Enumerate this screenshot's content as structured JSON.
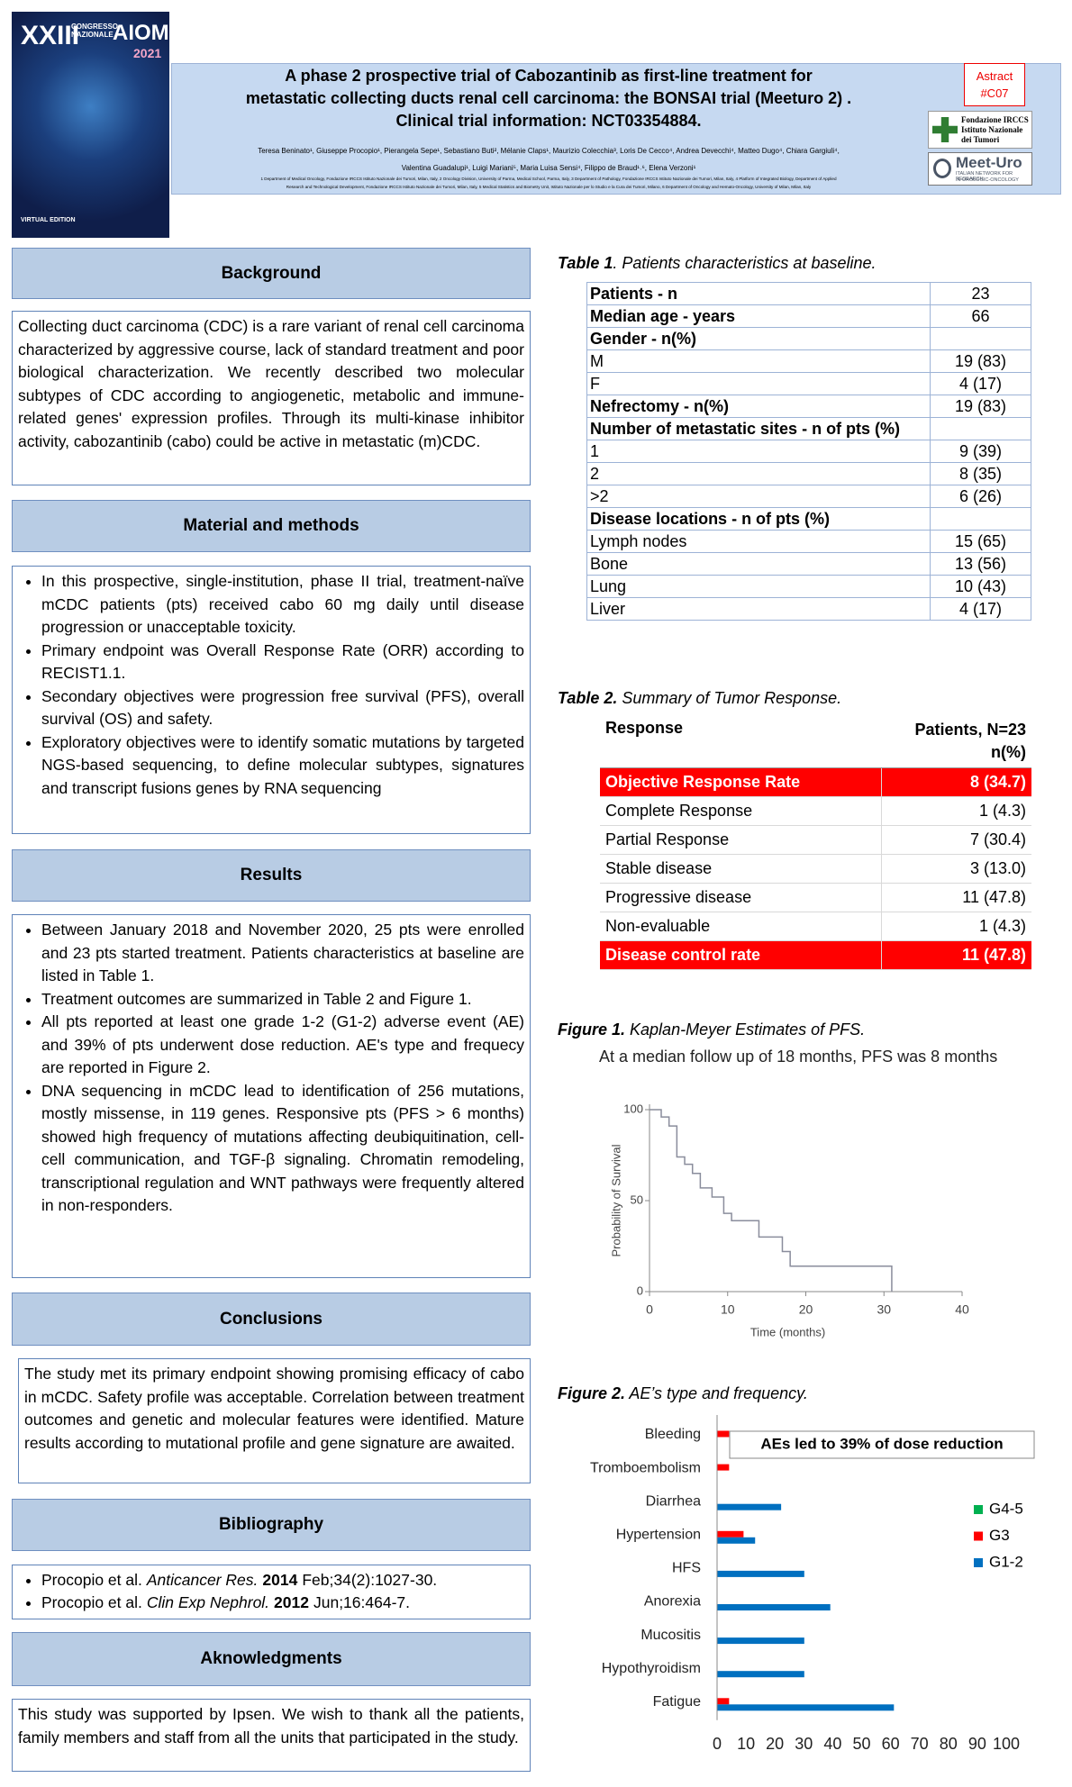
{
  "header": {
    "cover": {
      "edition": "XXIII",
      "congress": "CONGRESSO NAZIONALE",
      "brand": "AIOM",
      "year": "2021",
      "edition_note": "VIRTUAL EDITION"
    },
    "title": [
      "A phase 2 prospective trial of Cabozantinib as first-line treatment for",
      "metastatic collecting ducts renal cell carcinoma: the BONSAI trial (Meeturo 2) .",
      "Clinical trial information: NCT03354884."
    ],
    "authors": [
      "Teresa Beninato¹, Giuseppe Procopio¹, Pierangela Sepe¹, Sebastiano Buti², Mélanie Claps¹, Maurizio Colecchia³, Loris De Cecco⁴, Andrea Devecchi⁴, Matteo Dugo⁴, Chiara Gargiuli⁴,",
      "Valentina Guadalupi¹, Luigi Mariani⁵, Maria Luisa Sensi⁴, Filippo de Braud¹˒⁶, Elena Verzoni¹"
    ],
    "affiliations": [
      "1 Department of Medical Oncology, Fondazione IRCCS Istituto Nazionale dei Tumori, Milan, Italy, 2 Oncology Division, University of Parma, Medical School, Parma, Italy, 3 Department of Pathology, Fondazione IRCCS Istituto Nazionale dei Tumori, Milan, Italy, 4 Platform of Integrated Biology, Department of Applied",
      "Research and Technological Development, Fondazione IRCCS Istituto Nazionale dei Tumori, Milan, Italy, 5 Medical Statistics and Biometry Unit, Istituto Nazionale per lo Studio e la Cura dei Tumori, Milano, 6 Department of Oncology and Hemato-Oncology, University of Milan, Milan, Italy"
    ],
    "abstract": [
      "Astract",
      "#C07"
    ],
    "logos": {
      "int": [
        "Fondazione IRCCS",
        "Istituto Nazionale",
        "dei Tumori"
      ],
      "meeturo": [
        "Meet-Uro",
        "ITALIAN NETWORK FOR RESEARCH",
        "IN UROLOGIC-ONCOLOGY"
      ]
    }
  },
  "sections": [
    {
      "title": "Background",
      "paragraph": "Collecting duct carcinoma (CDC) is a rare variant of renal cell carcinoma characterized by aggressive course, lack of standard treatment and poor biological characterization. We recently described two molecular subtypes of CDC according to angiogenetic, metabolic and immune-related genes' expression profiles. Through its multi-kinase inhibitor activity, cabozantinib (cabo) could be active in metastatic (m)CDC."
    },
    {
      "title": "Material and methods",
      "bullets": [
        "In this prospective, single-institution, phase II trial, treatment-naïve mCDC patients (pts) received cabo 60 mg daily until disease progression or unacceptable toxicity.",
        "Primary endpoint was Overall Response Rate (ORR) according to RECIST1.1.",
        "Secondary objectives were progression free survival (PFS), overall survival (OS) and safety.",
        "Exploratory objectives were to identify somatic mutations by targeted NGS-based sequencing, to define molecular subtypes, signatures and transcript fusions genes by RNA sequencing"
      ]
    },
    {
      "title": "Results",
      "bullets": [
        "Between January 2018 and November 2020, 25 pts were enrolled and 23 pts started treatment. Patients characteristics at baseline are listed in Table 1.",
        "Treatment outcomes are summarized in Table 2 and Figure 1.",
        "All pts reported at least one grade 1-2 (G1-2) adverse event (AE) and 39% of pts underwent dose reduction. AE's type and frequecy are reported in Figure 2.",
        "DNA sequencing in mCDC lead to identification of 256 mutations, mostly missense, in 119 genes. Responsive pts (PFS > 6 months) showed high frequency of mutations affecting deubiquitination, cell-cell communication, and TGF-β signaling. Chromatin remodeling, transcriptional regulation and WNT pathways were frequently altered in non-responders."
      ]
    },
    {
      "title": "Conclusions",
      "paragraph": "The study met its primary endpoint showing promising efficacy of cabo in mCDC. Safety profile was acceptable. Correlation between treatment outcomes and genetic and molecular features were identified. Mature results according to mutational profile and gene signature are awaited."
    },
    {
      "title": "Bibliography",
      "references": [
        {
          "author": "Procopio et al.",
          "journal": "Anticancer Res.",
          "year": "2014",
          "rest": "Feb;34(2):1027-30."
        },
        {
          "author": "Procopio et al.",
          "journal": "Clin Exp Nephrol.",
          "year": "2012",
          "rest": "Jun;16:464-7."
        }
      ]
    },
    {
      "title": "Aknowledgments",
      "paragraph": "This study was supported by Ipsen. We wish to thank all the patients, family members and staff from all the units that participated in the study."
    }
  ],
  "table1": {
    "label": "Table 1",
    "caption": ". Patients characteristics at baseline.",
    "rows": [
      {
        "label": "Patients - n",
        "value": "23",
        "bold": true
      },
      {
        "label": "Median age - years",
        "value": "66",
        "bold": true
      },
      {
        "label": "Gender - n(%)",
        "bold": true
      },
      {
        "label": "M",
        "value": "19 (83)"
      },
      {
        "label": "F",
        "value": "4 (17)"
      },
      {
        "label": "Nefrectomy - n(%)",
        "value": "19 (83)",
        "bold": true
      },
      {
        "label": "Number of metastatic sites - n of pts (%)",
        "bold": true
      },
      {
        "label": "1",
        "value": "9 (39)"
      },
      {
        "label": "2",
        "value": "8 (35)"
      },
      {
        "label": ">2",
        "value": "6 (26)"
      },
      {
        "label": "Disease locations - n of pts (%)",
        "bold": true
      },
      {
        "label": "Lymph nodes",
        "value": "15 (65)"
      },
      {
        "label": "Bone",
        "value": "13 (56)"
      },
      {
        "label": "Lung",
        "value": "10 (43)"
      },
      {
        "label": "Liver",
        "value": "4 (17)"
      }
    ]
  },
  "table2": {
    "label": "Table 2.",
    "caption": "Summary of Tumor Response.",
    "header": [
      "Response",
      "Patients, N=23 n(%)"
    ],
    "rows": [
      {
        "response": "Objective Response Rate",
        "patients": "8 (34.7)",
        "highlight": true
      },
      {
        "response": "Complete Response",
        "patients": "1 (4.3)"
      },
      {
        "response": "Partial Response",
        "patients": "7 (30.4)"
      },
      {
        "response": "Stable disease",
        "patients": "3 (13.0)"
      },
      {
        "response": "Progressive disease",
        "patients": "11 (47.8)"
      },
      {
        "response": "Non-evaluable",
        "patients": "1 (4.3)"
      },
      {
        "response": "Disease control rate",
        "patients": "11 (47.8)",
        "highlight": true
      }
    ]
  },
  "figures": [
    {
      "label": "Figure 1.",
      "caption": "Kaplan-Meyer Estimates of PFS."
    },
    {
      "label": "Figure 2.",
      "caption": "AE’s type and frequency."
    }
  ],
  "chart_data": [
    {
      "type": "line",
      "title": "At a median follow up of 18 months, PFS was 8 months",
      "x_label": "Time (months)",
      "y_label": "Probability of Survival",
      "x": [
        0,
        1.5,
        1.5,
        2.5,
        2.5,
        3.5,
        3.5,
        4.5,
        4.5,
        5.5,
        5.5,
        6.5,
        6.5,
        8,
        8,
        9.5,
        9.5,
        10.5,
        10.5,
        14,
        14,
        17,
        17,
        18,
        18,
        31,
        31
      ],
      "values": [
        100,
        100,
        96,
        96,
        91,
        91,
        74,
        74,
        70,
        70,
        65,
        65,
        57,
        57,
        52,
        52,
        43,
        43,
        39,
        39,
        30,
        30,
        22,
        22,
        14,
        14,
        0
      ],
      "color": "#8a8d9c",
      "xlim": [
        0,
        40
      ],
      "xticks": [
        0,
        10,
        20,
        30,
        40
      ],
      "ylim": [
        0,
        100
      ],
      "yticks": [
        0,
        50,
        100
      ]
    },
    {
      "type": "bar",
      "orientation": "horizontal",
      "annotation": "AEs led to 39% of dose reduction",
      "categories": [
        "Bleeding",
        "Tromboembolism",
        "Diarrhea",
        "Hypertension",
        "HFS",
        "Anorexia",
        "Mucositis",
        "Hypothyroidism",
        "Fatigue"
      ],
      "series": [
        {
          "name": "G4-5",
          "color": "#00b050",
          "values": [
            0,
            0,
            0,
            0,
            0,
            0,
            0,
            0,
            0
          ]
        },
        {
          "name": "G3",
          "color": "#ff0000",
          "values": [
            4,
            4,
            0,
            9,
            0,
            0,
            0,
            0,
            4
          ]
        },
        {
          "name": "G1-2",
          "color": "#0070c0",
          "values": [
            0,
            0,
            22,
            13,
            30,
            39,
            30,
            30,
            61
          ]
        }
      ],
      "xlim": [
        0,
        100
      ],
      "xticks": [
        0,
        10,
        20,
        30,
        40,
        50,
        60,
        70,
        80,
        90,
        100
      ],
      "legend": "right"
    }
  ]
}
